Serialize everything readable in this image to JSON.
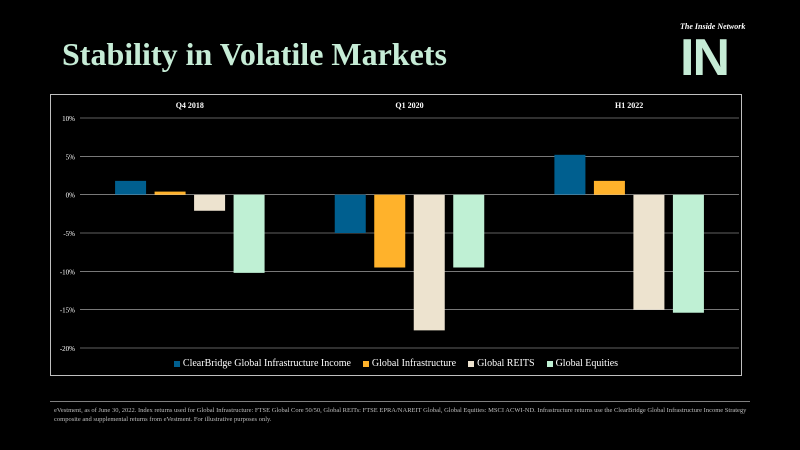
{
  "title": "Stability in Volatile Markets",
  "brand": {
    "tagline": "The Inside Network",
    "logo_text": "IN"
  },
  "colors": {
    "background": "#000000",
    "title": "#c6ecd6",
    "gridline": "#bfbfbf"
  },
  "chart_data": {
    "type": "bar",
    "categories": [
      "Q4 2018",
      "Q1 2020",
      "H1 2022"
    ],
    "series": [
      {
        "name": "ClearBridge Global Infrastructure Income",
        "color": "#005f8f",
        "values": [
          1.8,
          -5.0,
          5.2
        ]
      },
      {
        "name": "Global Infrastructure",
        "color": "#ffb22b",
        "values": [
          0.4,
          -9.5,
          1.8
        ]
      },
      {
        "name": "Global REITS",
        "color": "#ede3cf",
        "values": [
          -2.1,
          -17.7,
          -15.0
        ]
      },
      {
        "name": "Global Equities",
        "color": "#bff0d4",
        "values": [
          -10.2,
          -9.5,
          -15.4
        ]
      }
    ],
    "yticks": [
      10,
      5,
      0,
      -5,
      -10,
      -15,
      -20
    ],
    "ytick_labels": [
      "10%",
      "5%",
      "0%",
      "-5%",
      "-10%",
      "-15%",
      "-20%"
    ],
    "ylim": [
      -20,
      10
    ],
    "grid": true,
    "legend": "bottom",
    "category_labels_position": "top",
    "xlabel": "",
    "ylabel": ""
  },
  "footnote": "eVestment, as of June 30, 2022. Index returns used for Global Infrastructure: FTSE Global Core 50/50, Global REITs: FTSE EPRA/NAREIT Global, Global Equities: MSCI ACWI-ND. Infrastructure returns use the ClearBridge Global Infrastructure Income Strategy composite and supplemental returns from eVestment. For illustrative purposes only."
}
